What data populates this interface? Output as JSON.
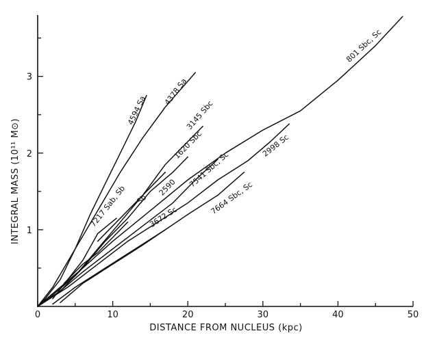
{
  "chart_data": {
    "type": "line",
    "xlabel": "DISTANCE   FROM NUCLEUS (kpc)",
    "ylabel": "INTEGRAL MASS (10¹¹ M⊙)",
    "xlim": [
      0,
      50
    ],
    "ylim": [
      0,
      3.8
    ],
    "x_ticks": [
      0,
      10,
      20,
      30,
      40,
      50
    ],
    "y_ticks": [
      1,
      2,
      3
    ],
    "grid": false,
    "series": [
      {
        "name": "4594 Sa",
        "points": [
          [
            0,
            0
          ],
          [
            1,
            0.1
          ],
          [
            3,
            0.35
          ],
          [
            5,
            0.75
          ],
          [
            7,
            1.2
          ],
          [
            9,
            1.6
          ],
          [
            11,
            2.0
          ],
          [
            13,
            2.4
          ],
          [
            14.5,
            2.75
          ]
        ],
        "label_at": [
          12.6,
          2.36
        ]
      },
      {
        "name": "4378 Sa",
        "points": [
          [
            0,
            0
          ],
          [
            2,
            0.25
          ],
          [
            5,
            0.75
          ],
          [
            8,
            1.25
          ],
          [
            11,
            1.75
          ],
          [
            14,
            2.2
          ],
          [
            17,
            2.6
          ],
          [
            21,
            3.05
          ]
        ],
        "label_at": [
          17.4,
          2.62
        ]
      },
      {
        "name": "801 Sbc, Sc",
        "points": [
          [
            0,
            0
          ],
          [
            3,
            0.25
          ],
          [
            6,
            0.5
          ],
          [
            10,
            0.85
          ],
          [
            15,
            1.25
          ],
          [
            20,
            1.65
          ],
          [
            25,
            2.0
          ],
          [
            30,
            2.3
          ],
          [
            35,
            2.55
          ],
          [
            40,
            2.95
          ],
          [
            45,
            3.4
          ],
          [
            48.6,
            3.78
          ]
        ],
        "label_at": [
          41.5,
          3.18
        ]
      },
      {
        "name": "3145 Sbc",
        "points": [
          [
            0,
            0
          ],
          [
            2,
            0.15
          ],
          [
            5,
            0.4
          ],
          [
            8,
            0.75
          ],
          [
            11,
            1.1
          ],
          [
            14,
            1.45
          ],
          [
            17,
            1.85
          ],
          [
            20,
            2.15
          ],
          [
            22,
            2.35
          ]
        ],
        "label_at": [
          20.3,
          2.3
        ]
      },
      {
        "name": "1620 Sbc",
        "points": [
          [
            0,
            0
          ],
          [
            3,
            0.2
          ],
          [
            6,
            0.5
          ],
          [
            9,
            0.85
          ],
          [
            12,
            1.15
          ],
          [
            15,
            1.5
          ],
          [
            18,
            1.75
          ],
          [
            20,
            1.95
          ]
        ],
        "label_at": [
          18.6,
          1.92
        ]
      },
      {
        "name": "7541 Sbc, Sc",
        "points": [
          [
            0,
            0
          ],
          [
            3,
            0.2
          ],
          [
            6,
            0.45
          ],
          [
            10,
            0.75
          ],
          [
            14,
            1.05
          ],
          [
            18,
            1.35
          ],
          [
            21,
            1.65
          ],
          [
            24,
            1.92
          ]
        ],
        "label_at": [
          20.6,
          1.55
        ]
      },
      {
        "name": "2998 Sc",
        "points": [
          [
            0,
            0
          ],
          [
            4,
            0.25
          ],
          [
            8,
            0.55
          ],
          [
            12,
            0.85
          ],
          [
            16,
            1.1
          ],
          [
            20,
            1.35
          ],
          [
            24,
            1.65
          ],
          [
            28,
            1.9
          ],
          [
            31,
            2.15
          ],
          [
            33.5,
            2.38
          ]
        ],
        "label_at": [
          30.3,
          1.95
        ]
      },
      {
        "name": "7664 Sbc, Sc",
        "points": [
          [
            2,
            0.03
          ],
          [
            5,
            0.25
          ],
          [
            9,
            0.5
          ],
          [
            13,
            0.75
          ],
          [
            17,
            1.0
          ],
          [
            20,
            1.2
          ],
          [
            24,
            1.45
          ],
          [
            27.5,
            1.75
          ]
        ],
        "label_at": [
          23.4,
          1.2
        ]
      },
      {
        "name": "3672 Sc",
        "points": [
          [
            3,
            0.05
          ],
          [
            6,
            0.3
          ],
          [
            10,
            0.55
          ],
          [
            14,
            0.8
          ],
          [
            17,
            1.0
          ]
        ],
        "label_at": [
          15.2,
          1.03
        ]
      },
      {
        "name": "7217 Sab, Sb",
        "points": [
          [
            2,
            0.1
          ],
          [
            4,
            0.35
          ],
          [
            6,
            0.6
          ],
          [
            8,
            0.95
          ],
          [
            10.5,
            1.15
          ]
        ],
        "label_at": [
          7.5,
          1.03
        ]
      },
      {
        "name": "2590",
        "points": [
          [
            8,
            0.85
          ],
          [
            10.5,
            1.1
          ],
          [
            13,
            1.35
          ],
          [
            15,
            1.55
          ],
          [
            17,
            1.75
          ]
        ],
        "label_at": [
          16.6,
          1.44
        ]
      },
      {
        "name": "Sb",
        "points": [
          [
            3.5,
            0.3
          ],
          [
            6,
            0.55
          ],
          [
            8,
            0.7
          ],
          [
            10,
            0.9
          ],
          [
            12,
            1.1
          ]
        ],
        "label_at": [
          13.6,
          1.33
        ]
      }
    ]
  }
}
